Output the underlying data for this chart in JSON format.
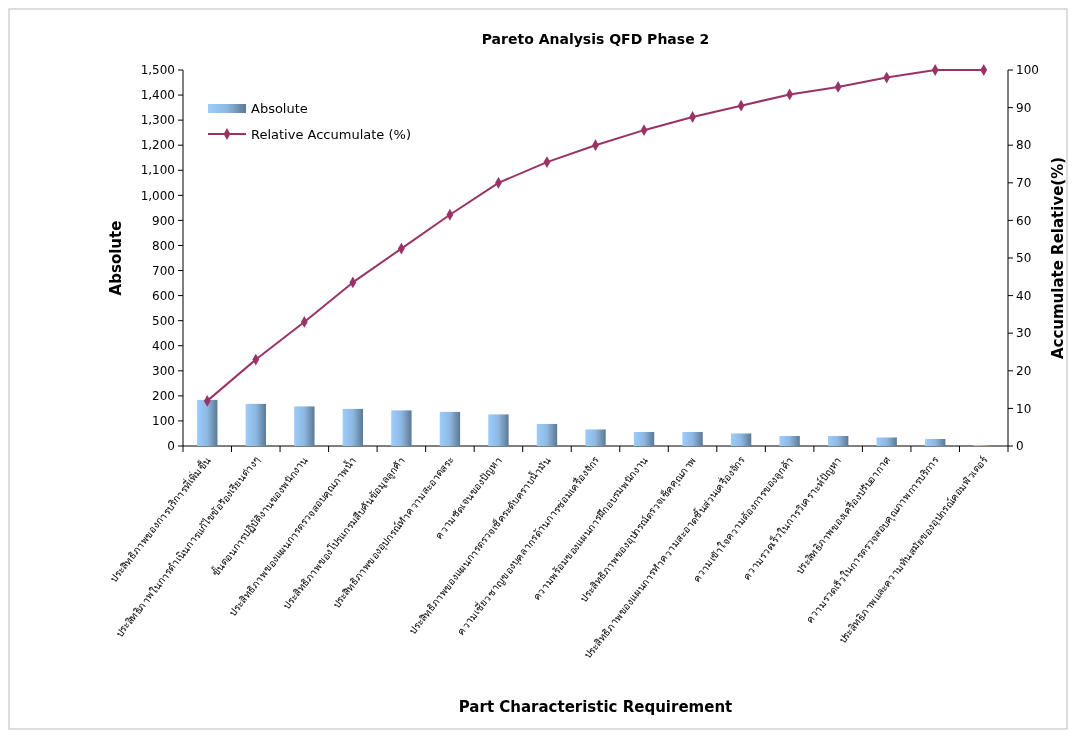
{
  "chart_data": {
    "type": "bar",
    "title": "Pareto Analysis QFD Phase 2",
    "xlabel": "Part Characteristic Requirement",
    "ylabel": "Absolute",
    "y2label": "Accumulate Relative(%)",
    "categories": [
      "ประสิทธิภาพของการบริการที่เพิ่มขึ้น",
      "ประสิทธิภาพในการดำเนินการแก้ไขข้อร้องเรียนต่างๆ",
      "ขั้นตอนการปฏิบัติงานของพนักงาน",
      "ประสิทธิภาพของแผนการตรวจสอบคุณภาพน้ำ",
      "ประสิทธิภาพของโปรแกรมสืบค้นข้อมูลลูกค้า",
      "ประสิทธิภาพของอุปกรณ์ทำความสะอาดสระ",
      "ความชัดเจนของปัญหา",
      "ประสิทธิภาพของแผนการตรวจเช็คระดับคราบน้ำมัน",
      "ความเชี่ยวชาญของบุคลากรด้านการซ่อมเครื่องจักร",
      "ความพร้อมของแผนการฝึกอบรมพนักงาน",
      "ประสิทธิภาพของอุปกรณ์ตรวจเช็คคุณภาพ",
      "ประสิทธิภาพของแผนการทำความสะอาดชิ้นส่วนเครื่องจักร",
      "ความเข้าใจความต้องการของลูกค้า",
      "ความรวดเร็วในการวิเคราะห์ปัญหา",
      "ประสิทธิภาพของเครื่องปรับอากาศ",
      "ความรวดเร็วในการตรวจสอบคุณภาพการบริการ",
      "ประสิทธิภาพและความทันสมัยของอุปกรณ์คอมพิวเตอร์"
    ],
    "series": [
      {
        "name": "Absolute",
        "color": "#8db8e2",
        "values": [
          184,
          168,
          158,
          148,
          142,
          136,
          126,
          88,
          66,
          56,
          56,
          50,
          40,
          40,
          34,
          28,
          4
        ]
      },
      {
        "name": "Relative Accumulate (%)",
        "type": "line",
        "axis": "y2",
        "color": "#993366",
        "marker": "diamond",
        "values": [
          12,
          23,
          33,
          43.5,
          52.5,
          61.5,
          70,
          75.5,
          80,
          84,
          87.5,
          90.5,
          93.5,
          95.5,
          98,
          100,
          100
        ]
      }
    ],
    "ylim": [
      0,
      1500
    ],
    "yticks": [
      {
        "value": 0,
        "label": "0"
      },
      {
        "value": 100,
        "label": "100"
      },
      {
        "value": 200,
        "label": "200"
      },
      {
        "value": 300,
        "label": "300"
      },
      {
        "value": 400,
        "label": "400"
      },
      {
        "value": 500,
        "label": "500"
      },
      {
        "value": 600,
        "label": "600"
      },
      {
        "value": 700,
        "label": "700"
      },
      {
        "value": 800,
        "label": "800"
      },
      {
        "value": 900,
        "label": "900"
      },
      {
        "value": 1000,
        "label": "1,000"
      },
      {
        "value": 1100,
        "label": "1,100"
      },
      {
        "value": 1200,
        "label": "1,200"
      },
      {
        "value": 1300,
        "label": "1,300"
      },
      {
        "value": 1400,
        "label": "1,400"
      },
      {
        "value": 1500,
        "label": "1,500"
      }
    ],
    "y2lim": [
      0,
      100
    ],
    "y2ticks": [
      0,
      10,
      20,
      30,
      40,
      50,
      60,
      70,
      80,
      90,
      100
    ],
    "grid": false,
    "legend": "top left"
  }
}
